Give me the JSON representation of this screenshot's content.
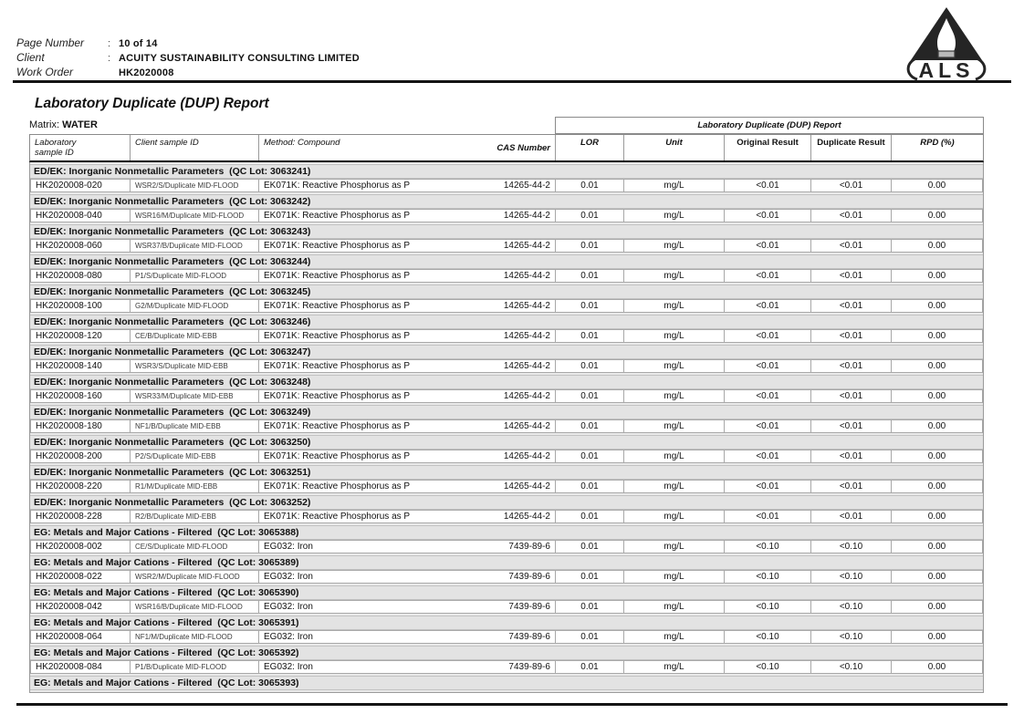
{
  "header": {
    "rows": [
      {
        "label": "Page Number",
        "colon": ":",
        "value": "10 of 14"
      },
      {
        "label": "Client",
        "colon": ":",
        "value": "ACUITY SUSTAINABILITY CONSULTING LIMITED"
      },
      {
        "label": "Work Order",
        "colon": ":",
        "value": "HK2020008"
      }
    ],
    "logo_text": "ALS"
  },
  "title": "Laboratory Duplicate (DUP) Report",
  "matrix": {
    "label": "Matrix:",
    "value": "WATER"
  },
  "table": {
    "group_header": "Laboratory Duplicate (DUP) Report",
    "columns": {
      "lab_line1": "Laboratory",
      "lab_line2": "sample ID",
      "client_id": "Client sample ID",
      "method": "Method: Compound",
      "cas": "CAS Number",
      "lor": "LOR",
      "unit": "Unit",
      "original": "Original Result",
      "duplicate": "Duplicate Result",
      "rpd": "RPD (%)"
    },
    "sections": [
      {
        "heading": "ED/EK: Inorganic Nonmetallic Parameters  (QC Lot: 3063241)",
        "row": {
          "lab_id": "HK2020008-020",
          "client_id": "WSR2/S/Duplicate MID-FLOOD",
          "method": "EK071K: Reactive Phosphorus as P",
          "cas": "14265-44-2",
          "lor": "0.01",
          "unit": "mg/L",
          "original": "<0.01",
          "duplicate": "<0.01",
          "rpd": "0.00"
        }
      },
      {
        "heading": "ED/EK: Inorganic Nonmetallic Parameters  (QC Lot: 3063242)",
        "row": {
          "lab_id": "HK2020008-040",
          "client_id": "WSR16/M/Duplicate MID-FLOOD",
          "method": "EK071K: Reactive Phosphorus as P",
          "cas": "14265-44-2",
          "lor": "0.01",
          "unit": "mg/L",
          "original": "<0.01",
          "duplicate": "<0.01",
          "rpd": "0.00"
        }
      },
      {
        "heading": "ED/EK: Inorganic Nonmetallic Parameters  (QC Lot: 3063243)",
        "row": {
          "lab_id": "HK2020008-060",
          "client_id": "WSR37/B/Duplicate MID-FLOOD",
          "method": "EK071K: Reactive Phosphorus as P",
          "cas": "14265-44-2",
          "lor": "0.01",
          "unit": "mg/L",
          "original": "<0.01",
          "duplicate": "<0.01",
          "rpd": "0.00"
        }
      },
      {
        "heading": "ED/EK: Inorganic Nonmetallic Parameters  (QC Lot: 3063244)",
        "row": {
          "lab_id": "HK2020008-080",
          "client_id": "P1/S/Duplicate MID-FLOOD",
          "method": "EK071K: Reactive Phosphorus as P",
          "cas": "14265-44-2",
          "lor": "0.01",
          "unit": "mg/L",
          "original": "<0.01",
          "duplicate": "<0.01",
          "rpd": "0.00"
        }
      },
      {
        "heading": "ED/EK: Inorganic Nonmetallic Parameters  (QC Lot: 3063245)",
        "row": {
          "lab_id": "HK2020008-100",
          "client_id": "G2/M/Duplicate MID-FLOOD",
          "method": "EK071K: Reactive Phosphorus as P",
          "cas": "14265-44-2",
          "lor": "0.01",
          "unit": "mg/L",
          "original": "<0.01",
          "duplicate": "<0.01",
          "rpd": "0.00"
        }
      },
      {
        "heading": "ED/EK: Inorganic Nonmetallic Parameters  (QC Lot: 3063246)",
        "row": {
          "lab_id": "HK2020008-120",
          "client_id": "CE/B/Duplicate MID-EBB",
          "method": "EK071K: Reactive Phosphorus as P",
          "cas": "14265-44-2",
          "lor": "0.01",
          "unit": "mg/L",
          "original": "<0.01",
          "duplicate": "<0.01",
          "rpd": "0.00"
        }
      },
      {
        "heading": "ED/EK: Inorganic Nonmetallic Parameters  (QC Lot: 3063247)",
        "row": {
          "lab_id": "HK2020008-140",
          "client_id": "WSR3/S/Duplicate MID-EBB",
          "method": "EK071K: Reactive Phosphorus as P",
          "cas": "14265-44-2",
          "lor": "0.01",
          "unit": "mg/L",
          "original": "<0.01",
          "duplicate": "<0.01",
          "rpd": "0.00"
        }
      },
      {
        "heading": "ED/EK: Inorganic Nonmetallic Parameters  (QC Lot: 3063248)",
        "row": {
          "lab_id": "HK2020008-160",
          "client_id": "WSR33/M/Duplicate MID-EBB",
          "method": "EK071K: Reactive Phosphorus as P",
          "cas": "14265-44-2",
          "lor": "0.01",
          "unit": "mg/L",
          "original": "<0.01",
          "duplicate": "<0.01",
          "rpd": "0.00"
        }
      },
      {
        "heading": "ED/EK: Inorganic Nonmetallic Parameters  (QC Lot: 3063249)",
        "row": {
          "lab_id": "HK2020008-180",
          "client_id": "NF1/B/Duplicate MID-EBB",
          "method": "EK071K: Reactive Phosphorus as P",
          "cas": "14265-44-2",
          "lor": "0.01",
          "unit": "mg/L",
          "original": "<0.01",
          "duplicate": "<0.01",
          "rpd": "0.00"
        }
      },
      {
        "heading": "ED/EK: Inorganic Nonmetallic Parameters  (QC Lot: 3063250)",
        "row": {
          "lab_id": "HK2020008-200",
          "client_id": "P2/S/Duplicate MID-EBB",
          "method": "EK071K: Reactive Phosphorus as P",
          "cas": "14265-44-2",
          "lor": "0.01",
          "unit": "mg/L",
          "original": "<0.01",
          "duplicate": "<0.01",
          "rpd": "0.00"
        }
      },
      {
        "heading": "ED/EK: Inorganic Nonmetallic Parameters  (QC Lot: 3063251)",
        "row": {
          "lab_id": "HK2020008-220",
          "client_id": "R1/M/Duplicate MID-EBB",
          "method": "EK071K: Reactive Phosphorus as P",
          "cas": "14265-44-2",
          "lor": "0.01",
          "unit": "mg/L",
          "original": "<0.01",
          "duplicate": "<0.01",
          "rpd": "0.00"
        }
      },
      {
        "heading": "ED/EK: Inorganic Nonmetallic Parameters  (QC Lot: 3063252)",
        "row": {
          "lab_id": "HK2020008-228",
          "client_id": "R2/B/Duplicate MID-EBB",
          "method": "EK071K: Reactive Phosphorus as P",
          "cas": "14265-44-2",
          "lor": "0.01",
          "unit": "mg/L",
          "original": "<0.01",
          "duplicate": "<0.01",
          "rpd": "0.00"
        }
      },
      {
        "heading": "EG: Metals and Major Cations - Filtered  (QC Lot: 3065388)",
        "row": {
          "lab_id": "HK2020008-002",
          "client_id": "CE/S/Duplicate MID-FLOOD",
          "method": "EG032: Iron",
          "cas": "7439-89-6",
          "lor": "0.01",
          "unit": "mg/L",
          "original": "<0.10",
          "duplicate": "<0.10",
          "rpd": "0.00"
        }
      },
      {
        "heading": "EG: Metals and Major Cations - Filtered  (QC Lot: 3065389)",
        "row": {
          "lab_id": "HK2020008-022",
          "client_id": "WSR2/M/Duplicate MID-FLOOD",
          "method": "EG032: Iron",
          "cas": "7439-89-6",
          "lor": "0.01",
          "unit": "mg/L",
          "original": "<0.10",
          "duplicate": "<0.10",
          "rpd": "0.00"
        }
      },
      {
        "heading": "EG: Metals and Major Cations - Filtered  (QC Lot: 3065390)",
        "row": {
          "lab_id": "HK2020008-042",
          "client_id": "WSR16/B/Duplicate MID-FLOOD",
          "method": "EG032: Iron",
          "cas": "7439-89-6",
          "lor": "0.01",
          "unit": "mg/L",
          "original": "<0.10",
          "duplicate": "<0.10",
          "rpd": "0.00"
        }
      },
      {
        "heading": "EG: Metals and Major Cations - Filtered  (QC Lot: 3065391)",
        "row": {
          "lab_id": "HK2020008-064",
          "client_id": "NF1/M/Duplicate MID-FLOOD",
          "method": "EG032: Iron",
          "cas": "7439-89-6",
          "lor": "0.01",
          "unit": "mg/L",
          "original": "<0.10",
          "duplicate": "<0.10",
          "rpd": "0.00"
        }
      },
      {
        "heading": "EG: Metals and Major Cations - Filtered  (QC Lot: 3065392)",
        "row": {
          "lab_id": "HK2020008-084",
          "client_id": "P1/B/Duplicate MID-FLOOD",
          "method": "EG032: Iron",
          "cas": "7439-89-6",
          "lor": "0.01",
          "unit": "mg/L",
          "original": "<0.10",
          "duplicate": "<0.10",
          "rpd": "0.00"
        }
      },
      {
        "heading": "EG: Metals and Major Cations - Filtered  (QC Lot: 3065393)",
        "row": null
      }
    ]
  }
}
